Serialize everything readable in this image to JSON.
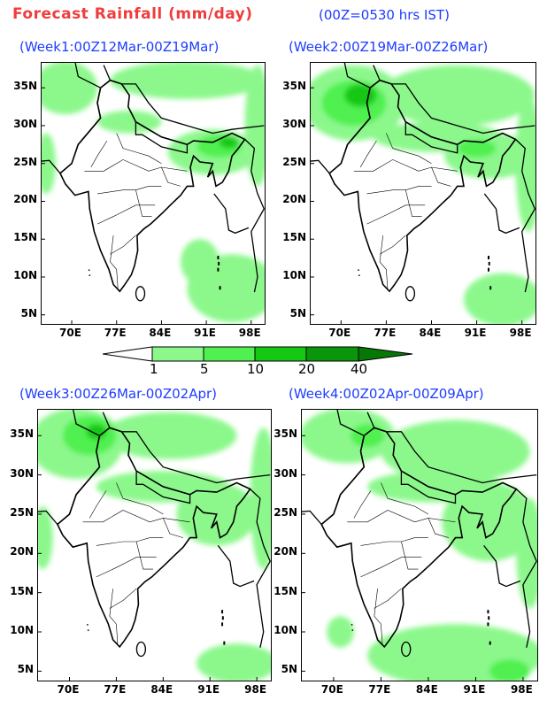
{
  "header": {
    "title": "Forecast Rainfall (mm/day)",
    "subtitle": "(00Z=0530 hrs IST)"
  },
  "colors": {
    "lvl1": "#8cf88c",
    "lvl2": "#50f050",
    "lvl3": "#14c814",
    "lvl4": "#0a960a",
    "lvl5": "#067806",
    "title": "#f03c3c",
    "panel_title": "#1e3cff"
  },
  "colorbar": {
    "labels": [
      "1",
      "5",
      "10",
      "20",
      "40"
    ]
  },
  "axes": {
    "lon_ticks": [
      {
        "v": 70,
        "label": "70E"
      },
      {
        "v": 77,
        "label": "77E"
      },
      {
        "v": 84,
        "label": "84E"
      },
      {
        "v": 91,
        "label": "91E"
      },
      {
        "v": 98,
        "label": "98E"
      }
    ],
    "lat_ticks": [
      {
        "v": 5,
        "label": "5N"
      },
      {
        "v": 10,
        "label": "10N"
      },
      {
        "v": 15,
        "label": "15N"
      },
      {
        "v": 20,
        "label": "20N"
      },
      {
        "v": 25,
        "label": "25N"
      },
      {
        "v": 30,
        "label": "30N"
      },
      {
        "v": 35,
        "label": "35N"
      }
    ],
    "lon_range": [
      65.3,
      100.1
    ],
    "lat_range": [
      3.8,
      38.3
    ]
  },
  "panels": [
    {
      "title": "(Week1:00Z12Mar-00Z19Mar)",
      "rain": [
        {
          "lvl": 1,
          "lon": 69,
          "lat": 35,
          "rl": 5,
          "rt": 3.5
        },
        {
          "lvl": 1,
          "lon": 88,
          "lat": 36,
          "rl": 12,
          "rt": 2.5
        },
        {
          "lvl": 1,
          "lon": 79,
          "lat": 30.5,
          "rl": 5,
          "rt": 1.5
        },
        {
          "lvl": 1,
          "lon": 92,
          "lat": 26.5,
          "rl": 7,
          "rt": 3
        },
        {
          "lvl": 1,
          "lon": 99,
          "lat": 30,
          "rl": 2,
          "rt": 8
        },
        {
          "lvl": 1,
          "lon": 95,
          "lat": 8.5,
          "rl": 7,
          "rt": 4.5
        },
        {
          "lvl": 1,
          "lon": 90,
          "lat": 12,
          "rl": 3,
          "rt": 3
        },
        {
          "lvl": 2,
          "lon": 93,
          "lat": 27.3,
          "rl": 3.5,
          "rt": 1.5
        },
        {
          "lvl": 3,
          "lon": 94.5,
          "lat": 27.8,
          "rl": 1.5,
          "rt": 0.8
        },
        {
          "lvl": 1,
          "lon": 66,
          "lat": 25,
          "rl": 1.5,
          "rt": 4
        }
      ]
    },
    {
      "title": "(Week2:00Z19Mar-00Z26Mar)",
      "rain": [
        {
          "lvl": 1,
          "lon": 72,
          "lat": 33,
          "rl": 8,
          "rt": 5
        },
        {
          "lvl": 1,
          "lon": 88,
          "lat": 34,
          "rl": 12,
          "rt": 4
        },
        {
          "lvl": 1,
          "lon": 85,
          "lat": 28.5,
          "rl": 10,
          "rt": 2
        },
        {
          "lvl": 1,
          "lon": 93,
          "lat": 26,
          "rl": 7,
          "rt": 3
        },
        {
          "lvl": 2,
          "lon": 72,
          "lat": 33,
          "rl": 5,
          "rt": 3
        },
        {
          "lvl": 3,
          "lon": 73,
          "lat": 34,
          "rl": 2.5,
          "rt": 1.5
        },
        {
          "lvl": 2,
          "lon": 91,
          "lat": 27,
          "rl": 3,
          "rt": 1.2
        },
        {
          "lvl": 1,
          "lon": 95,
          "lat": 7,
          "rl": 6,
          "rt": 3.5
        },
        {
          "lvl": 1,
          "lon": 99,
          "lat": 25,
          "rl": 2,
          "rt": 9
        }
      ]
    },
    {
      "title": "(Week3:00Z26Mar-00Z02Apr)",
      "rain": [
        {
          "lvl": 1,
          "lon": 71,
          "lat": 34,
          "rl": 7,
          "rt": 4.5
        },
        {
          "lvl": 1,
          "lon": 85,
          "lat": 35,
          "rl": 10,
          "rt": 3
        },
        {
          "lvl": 1,
          "lon": 84,
          "lat": 28.5,
          "rl": 10,
          "rt": 2
        },
        {
          "lvl": 1,
          "lon": 92,
          "lat": 25,
          "rl": 6,
          "rt": 4
        },
        {
          "lvl": 2,
          "lon": 73,
          "lat": 35,
          "rl": 4,
          "rt": 2.5
        },
        {
          "lvl": 3,
          "lon": 74,
          "lat": 35.5,
          "rl": 1.5,
          "rt": 1
        },
        {
          "lvl": 1,
          "lon": 66,
          "lat": 22,
          "rl": 1.5,
          "rt": 4
        },
        {
          "lvl": 1,
          "lon": 95,
          "lat": 6,
          "rl": 6,
          "rt": 2.5
        },
        {
          "lvl": 1,
          "lon": 99,
          "lat": 27,
          "rl": 2,
          "rt": 9
        }
      ]
    },
    {
      "title": "(Week4:00Z02Apr-00Z09Apr)",
      "rain": [
        {
          "lvl": 1,
          "lon": 72,
          "lat": 35,
          "rl": 7,
          "rt": 3.5
        },
        {
          "lvl": 1,
          "lon": 88,
          "lat": 33,
          "rl": 11,
          "rt": 4
        },
        {
          "lvl": 1,
          "lon": 85,
          "lat": 28.5,
          "rl": 10,
          "rt": 2
        },
        {
          "lvl": 1,
          "lon": 93,
          "lat": 24,
          "rl": 7,
          "rt": 5
        },
        {
          "lvl": 2,
          "lon": 75,
          "lat": 35,
          "rl": 2.5,
          "rt": 1.5
        },
        {
          "lvl": 1,
          "lon": 88,
          "lat": 7,
          "rl": 13,
          "rt": 4
        },
        {
          "lvl": 1,
          "lon": 99,
          "lat": 20,
          "rl": 2,
          "rt": 7
        },
        {
          "lvl": 2,
          "lon": 96,
          "lat": 5,
          "rl": 3,
          "rt": 1.5
        },
        {
          "lvl": 1,
          "lon": 71,
          "lat": 10,
          "rl": 2,
          "rt": 2
        }
      ]
    }
  ]
}
